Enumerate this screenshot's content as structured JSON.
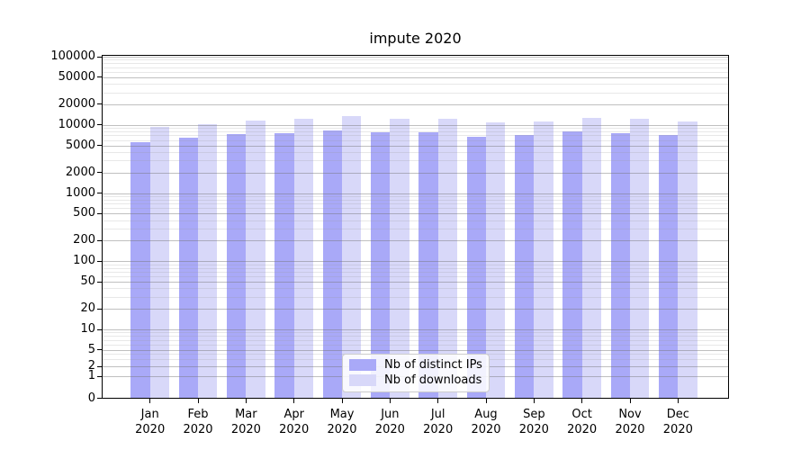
{
  "title": "impute 2020",
  "chart_data": {
    "type": "bar",
    "title": "impute 2020",
    "categories": [
      "Jan 2020",
      "Feb 2020",
      "Mar 2020",
      "Apr 2020",
      "May 2020",
      "Jun 2020",
      "Jul 2020",
      "Aug 2020",
      "Sep 2020",
      "Oct 2020",
      "Nov 2020",
      "Dec 2020"
    ],
    "series": [
      {
        "name": "Nb of distinct IPs",
        "color": "#a9a9f8",
        "values": [
          5600,
          6500,
          7300,
          7500,
          8200,
          7800,
          7700,
          6700,
          7000,
          8000,
          7500,
          7000
        ]
      },
      {
        "name": "Nb of downloads",
        "color": "#d8d8f9",
        "values": [
          9300,
          10200,
          11400,
          12200,
          13400,
          12400,
          12300,
          10900,
          11100,
          12700,
          12300,
          11200
        ]
      }
    ],
    "yscale": "symlog",
    "yticks": [
      100000,
      50000,
      20000,
      10000,
      5000,
      2000,
      1000,
      500,
      200,
      100,
      50,
      20,
      10,
      5,
      2,
      1,
      0
    ],
    "ylim": [
      0,
      108000
    ],
    "grid": "horizontal-major-and-minor",
    "legend_position": "lower-center",
    "xlabel": "",
    "ylabel": ""
  },
  "colors": {
    "bar_dark": "#a9a9f8",
    "bar_light": "#d8d8f9",
    "grid_major": "#c4c4c4",
    "grid_minor": "#e9e9e9",
    "spine": "#000000",
    "text": "#000000",
    "legend_border": "#cccccc"
  }
}
